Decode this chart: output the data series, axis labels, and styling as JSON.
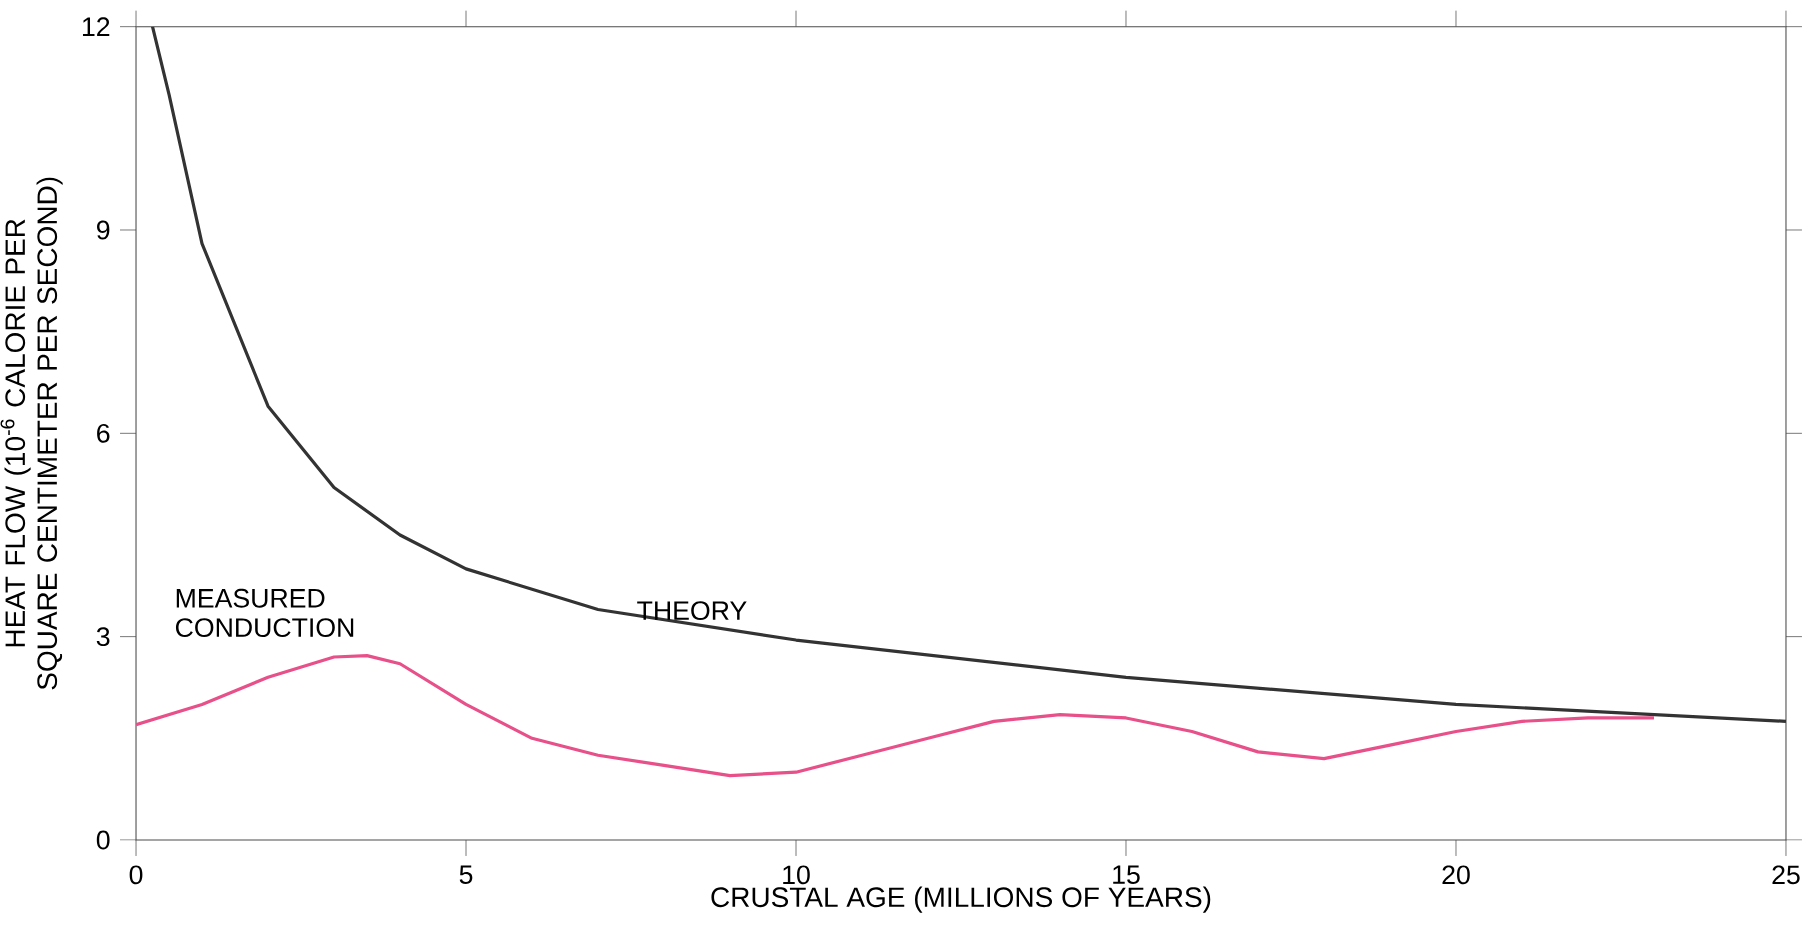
{
  "chart_data": {
    "type": "line",
    "xlabel": "CRUSTAL AGE (MILLIONS OF YEARS)",
    "ylabel": "HEAT FLOW (10$^{-6}$ CALORIE PER SQUARE CENTIMETER PER SECOND)",
    "series": [
      {
        "color": "#333333",
        "x": [
          0.25,
          0.5,
          1,
          2,
          3,
          4,
          5,
          7,
          10,
          15,
          20,
          25
        ],
        "values": [
          12,
          11,
          8.8,
          6.4,
          5.2,
          4.5,
          4.0,
          3.4,
          2.95,
          2.4,
          2.0,
          1.75
        ]
      },
      {
        "color": "#e8508a",
        "x": [
          0,
          1,
          2,
          3,
          3.5,
          4,
          5,
          6,
          7,
          8,
          9,
          10,
          11,
          12,
          13,
          14,
          15,
          16,
          17,
          18,
          19,
          20,
          21,
          22,
          23
        ],
        "values": [
          1.7,
          2.0,
          2.4,
          2.7,
          2.72,
          2.6,
          2.0,
          1.5,
          1.25,
          1.1,
          0.95,
          1.0,
          1.25,
          1.5,
          1.75,
          1.85,
          1.8,
          1.6,
          1.3,
          1.2,
          1.4,
          1.6,
          1.75,
          1.8,
          1.8
        ]
      }
    ],
    "annotations": [
      {
        "text": "MEASURED CONDUCTION",
        "x": 3.3,
        "y": 2.75
      },
      {
        "text": "THEORY",
        "x": 10.3,
        "y": 3.0
      }
    ],
    "xlim": [
      0,
      25
    ],
    "ylim": [
      0,
      12
    ],
    "xticks": [
      0,
      5,
      10,
      15,
      20,
      25
    ],
    "yticks": [
      0,
      3,
      6,
      9,
      12
    ],
    "grid": false,
    "marker": "none",
    "line_style": "solid"
  }
}
